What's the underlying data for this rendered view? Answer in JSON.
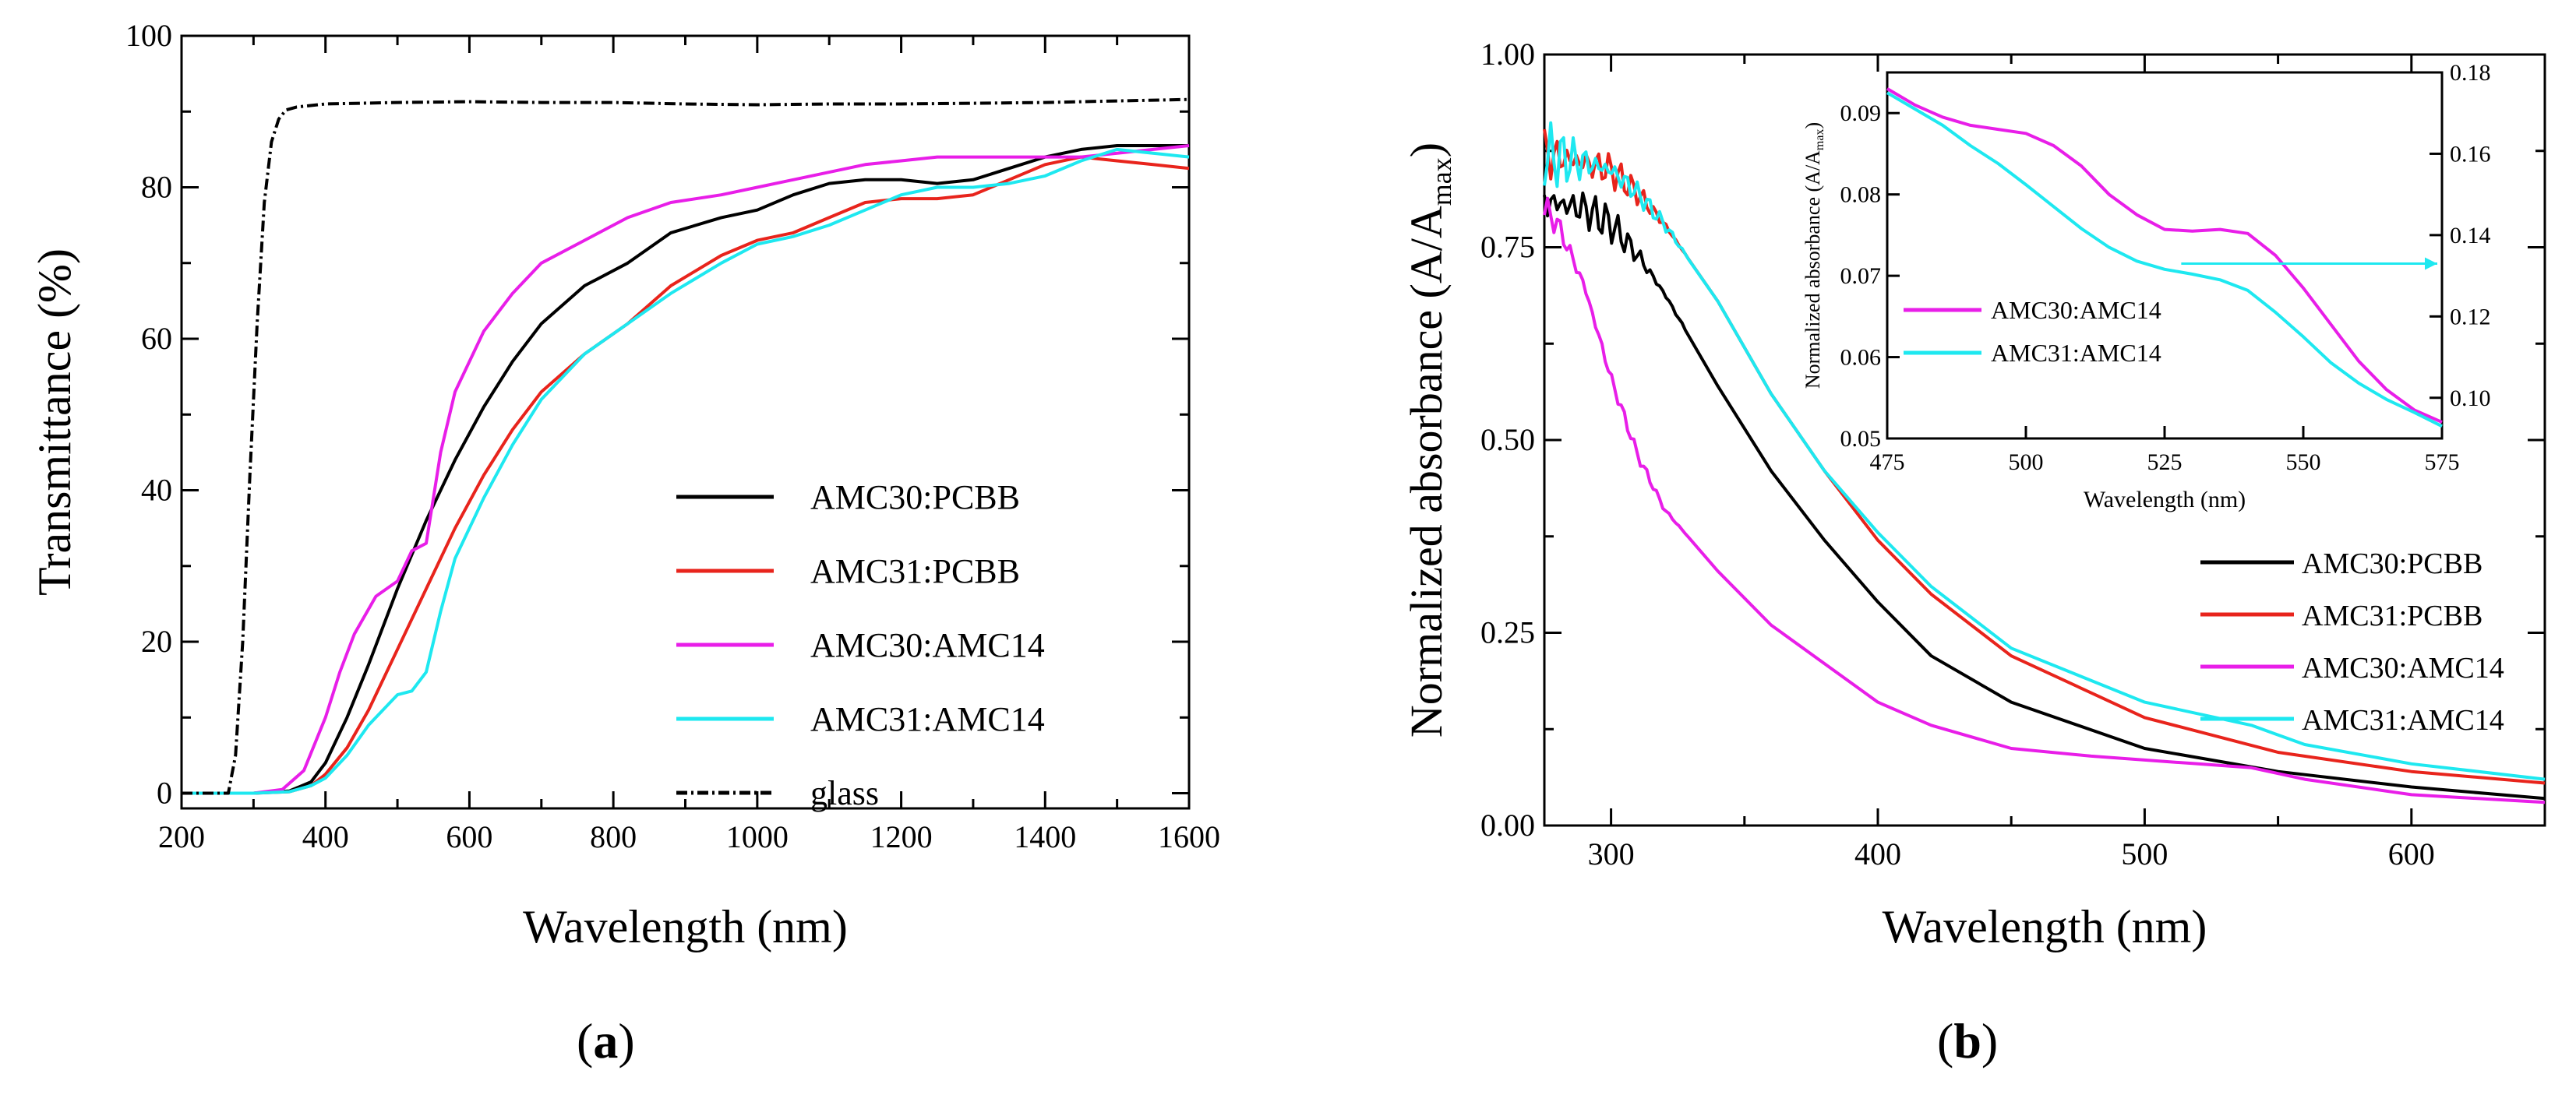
{
  "colors": {
    "black": "#000000",
    "red": "#e8241c",
    "magenta": "#e81ee8",
    "cyan": "#1ee8f0"
  },
  "panel_labels": {
    "a": "a",
    "b": "b",
    "open": "(",
    "close": ")"
  },
  "chart_data": [
    {
      "id": "a",
      "type": "line",
      "xlabel": "Wavelength (nm)",
      "ylabel": "Transmittance (%)",
      "xlim": [
        200,
        1600
      ],
      "ylim": [
        -2,
        100
      ],
      "xticks": [
        200,
        400,
        600,
        800,
        1000,
        1200,
        1400,
        1600
      ],
      "yticks": [
        0,
        20,
        40,
        60,
        80,
        100
      ],
      "legend": "center-right",
      "series": [
        {
          "name": "AMC30:PCBB",
          "color": "#000000",
          "dash": "",
          "x": [
            200,
            300,
            350,
            380,
            400,
            430,
            460,
            500,
            540,
            580,
            620,
            660,
            700,
            760,
            820,
            880,
            950,
            1000,
            1050,
            1100,
            1150,
            1200,
            1250,
            1300,
            1350,
            1400,
            1450,
            1500,
            1550,
            1600
          ],
          "y": [
            0,
            0,
            0.3,
            1.5,
            4,
            10,
            17,
            27,
            36,
            44,
            51,
            57,
            62,
            67,
            70,
            74,
            76,
            77,
            79,
            80.5,
            81,
            81,
            80.5,
            81,
            82.5,
            84,
            85,
            85.5,
            85.5,
            85.5
          ]
        },
        {
          "name": "AMC31:PCBB",
          "color": "#e8241c",
          "dash": "",
          "x": [
            200,
            300,
            350,
            380,
            400,
            430,
            460,
            500,
            540,
            580,
            620,
            660,
            700,
            760,
            820,
            880,
            950,
            1000,
            1050,
            1100,
            1150,
            1200,
            1250,
            1300,
            1350,
            1400,
            1450,
            1500,
            1550,
            1600
          ],
          "y": [
            0,
            0,
            0.2,
            1,
            2.5,
            6,
            11,
            19,
            27,
            35,
            42,
            48,
            53,
            58,
            62,
            67,
            71,
            73,
            74,
            76,
            78,
            78.5,
            78.5,
            79,
            81,
            83,
            84,
            83.5,
            83,
            82.5
          ]
        },
        {
          "name": "AMC30:AMC14",
          "color": "#e81ee8",
          "dash": "",
          "x": [
            200,
            300,
            340,
            370,
            400,
            420,
            440,
            470,
            500,
            520,
            540,
            560,
            580,
            620,
            660,
            700,
            760,
            820,
            880,
            950,
            1000,
            1050,
            1100,
            1150,
            1200,
            1250,
            1300,
            1350,
            1400,
            1450,
            1500,
            1550,
            1600
          ],
          "y": [
            0,
            0,
            0.5,
            3,
            10,
            16,
            21,
            26,
            28,
            32,
            33,
            45,
            53,
            61,
            66,
            70,
            73,
            76,
            78,
            79,
            80,
            81,
            82,
            83,
            83.5,
            84,
            84,
            84,
            84,
            84,
            84.5,
            85,
            85.5
          ]
        },
        {
          "name": "AMC31:AMC14",
          "color": "#1ee8f0",
          "dash": "",
          "x": [
            200,
            300,
            350,
            380,
            400,
            430,
            460,
            500,
            520,
            540,
            560,
            580,
            620,
            660,
            700,
            760,
            820,
            880,
            950,
            1000,
            1050,
            1100,
            1150,
            1200,
            1250,
            1300,
            1350,
            1400,
            1450,
            1500,
            1550,
            1600
          ],
          "y": [
            0,
            0,
            0.2,
            1,
            2,
            5,
            9,
            13,
            13.5,
            16,
            24,
            31,
            39,
            46,
            52,
            58,
            62,
            66,
            70,
            72.5,
            73.5,
            75,
            77,
            79,
            80,
            80,
            80.5,
            81.5,
            83.5,
            85,
            84.5,
            84
          ]
        },
        {
          "name": "glass",
          "color": "#000000",
          "dash": "14,5,3,5",
          "x": [
            200,
            265,
            275,
            285,
            295,
            305,
            315,
            325,
            335,
            345,
            360,
            400,
            500,
            600,
            700,
            800,
            900,
            1000,
            1100,
            1200,
            1300,
            1400,
            1500,
            1600
          ],
          "y": [
            0,
            0,
            5,
            20,
            42,
            62,
            78,
            86,
            89,
            90.2,
            90.6,
            91,
            91.2,
            91.3,
            91.2,
            91.2,
            91,
            90.9,
            91,
            91,
            91.1,
            91.2,
            91.4,
            91.6
          ]
        }
      ]
    },
    {
      "id": "b",
      "type": "line",
      "xlabel": "Wavelength (nm)",
      "ylabel_main": "Normalized absorbance (A/A",
      "ylabel_sub": "max",
      "ylabel_close": ")",
      "xlim": [
        275,
        650
      ],
      "ylim": [
        0,
        1
      ],
      "xticks": [
        300,
        400,
        500,
        600
      ],
      "yticks": [
        "0.00",
        "0.25",
        "0.50",
        "0.75",
        "1.00"
      ],
      "legend": "bottom-right",
      "series": [
        {
          "name": "AMC30:PCBB",
          "color": "#000000",
          "x": [
            275,
            290,
            300,
            310,
            320,
            340,
            360,
            380,
            400,
            420,
            450,
            500,
            550,
            600,
            650
          ],
          "y": [
            0.81,
            0.8,
            0.78,
            0.74,
            0.69,
            0.57,
            0.46,
            0.37,
            0.29,
            0.22,
            0.16,
            0.1,
            0.07,
            0.05,
            0.035
          ]
        },
        {
          "name": "AMC31:PCBB",
          "color": "#e8241c",
          "x": [
            275,
            290,
            300,
            310,
            320,
            330,
            340,
            360,
            380,
            400,
            420,
            450,
            500,
            550,
            600,
            650
          ],
          "y": [
            0.87,
            0.86,
            0.85,
            0.82,
            0.78,
            0.73,
            0.68,
            0.56,
            0.46,
            0.37,
            0.3,
            0.22,
            0.14,
            0.095,
            0.07,
            0.055
          ]
        },
        {
          "name": "AMC30:AMC14",
          "color": "#e81ee8",
          "x": [
            275,
            280,
            290,
            300,
            310,
            320,
            340,
            360,
            380,
            400,
            420,
            450,
            480,
            500,
            520,
            540,
            560,
            600,
            650
          ],
          "y": [
            0.8,
            0.78,
            0.7,
            0.58,
            0.48,
            0.41,
            0.33,
            0.26,
            0.21,
            0.16,
            0.13,
            0.1,
            0.09,
            0.085,
            0.08,
            0.075,
            0.06,
            0.04,
            0.03
          ]
        },
        {
          "name": "AMC31:AMC14",
          "color": "#1ee8f0",
          "x": [
            275,
            290,
            300,
            310,
            320,
            330,
            340,
            360,
            380,
            400,
            420,
            450,
            500,
            540,
            560,
            600,
            650
          ],
          "y": [
            0.87,
            0.86,
            0.85,
            0.82,
            0.78,
            0.73,
            0.68,
            0.56,
            0.46,
            0.38,
            0.31,
            0.23,
            0.16,
            0.13,
            0.105,
            0.08,
            0.06
          ]
        }
      ]
    },
    {
      "id": "b_inset",
      "type": "line",
      "xlabel": "Wavelength (nm)",
      "ylabel_main": "Normalized absorbance (A/A",
      "ylabel_sub": "max",
      "ylabel_close": ")",
      "xlim": [
        475,
        575
      ],
      "ylim_left": [
        0.05,
        0.095
      ],
      "ylim_right": [
        0.09,
        0.18
      ],
      "xticks": [
        475,
        500,
        525,
        550,
        575
      ],
      "yticks_left": [
        "0.05",
        "0.06",
        "0.07",
        "0.08",
        "0.09"
      ],
      "yticks_right": [
        "0.10",
        "0.12",
        "0.14",
        "0.16",
        "0.18"
      ],
      "legend": "center-left",
      "series": [
        {
          "name": "AMC30:AMC14",
          "color": "#e81ee8",
          "axis": "left",
          "x": [
            475,
            480,
            485,
            490,
            495,
            500,
            505,
            510,
            515,
            520,
            525,
            530,
            535,
            540,
            545,
            550,
            555,
            560,
            565,
            570,
            575
          ],
          "y": [
            0.093,
            0.091,
            0.0895,
            0.0885,
            0.088,
            0.0875,
            0.086,
            0.0835,
            0.08,
            0.0775,
            0.0757,
            0.0755,
            0.0757,
            0.0752,
            0.0725,
            0.0685,
            0.064,
            0.0595,
            0.056,
            0.0535,
            0.052
          ]
        },
        {
          "name": "AMC31:AMC14",
          "color": "#1ee8f0",
          "axis": "left",
          "x": [
            475,
            480,
            485,
            490,
            495,
            500,
            505,
            510,
            515,
            520,
            525,
            530,
            535,
            540,
            545,
            550,
            555,
            560,
            565,
            570,
            575
          ],
          "y": [
            0.0925,
            0.0905,
            0.0885,
            0.086,
            0.0838,
            0.0812,
            0.0785,
            0.0758,
            0.0735,
            0.0718,
            0.0708,
            0.0702,
            0.0695,
            0.0682,
            0.0655,
            0.0625,
            0.0593,
            0.0568,
            0.0548,
            0.0532,
            0.0515
          ]
        }
      ]
    }
  ]
}
